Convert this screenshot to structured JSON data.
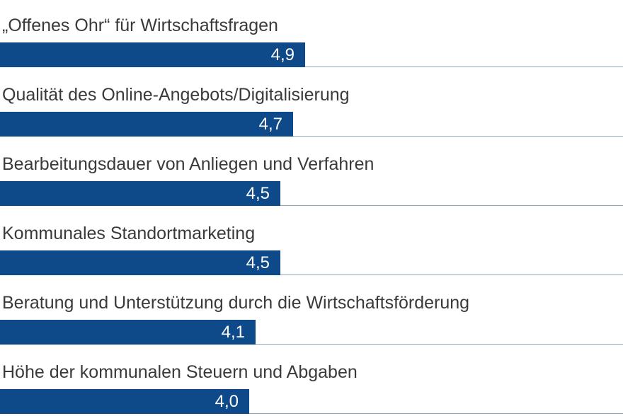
{
  "chart_data": {
    "type": "bar",
    "orientation": "horizontal",
    "categories": [
      "„Offenes Ohr“ für Wirtschaftsfragen",
      "Qualität des Online-Angebots/Digitalisierung",
      "Bearbeitungsdauer von Anliegen und Verfahren",
      "Kommunales Standortmarketing",
      "Beratung und Unterstützung durch die Wirtschaftsförderung",
      "Höhe der kommunalen Steuern und Abgaben"
    ],
    "values": [
      4.9,
      4.7,
      4.5,
      4.5,
      4.1,
      4.0
    ],
    "value_labels": [
      "4,9",
      "4,7",
      "4,5",
      "4,5",
      "4,1",
      "4,0"
    ],
    "xlim": [
      0,
      10
    ],
    "grid": false,
    "colors": {
      "bar": "#0e4a8a",
      "value_text": "#ffffff",
      "label_text": "#3a3a3a",
      "baseline": "#8fa8c2"
    }
  }
}
